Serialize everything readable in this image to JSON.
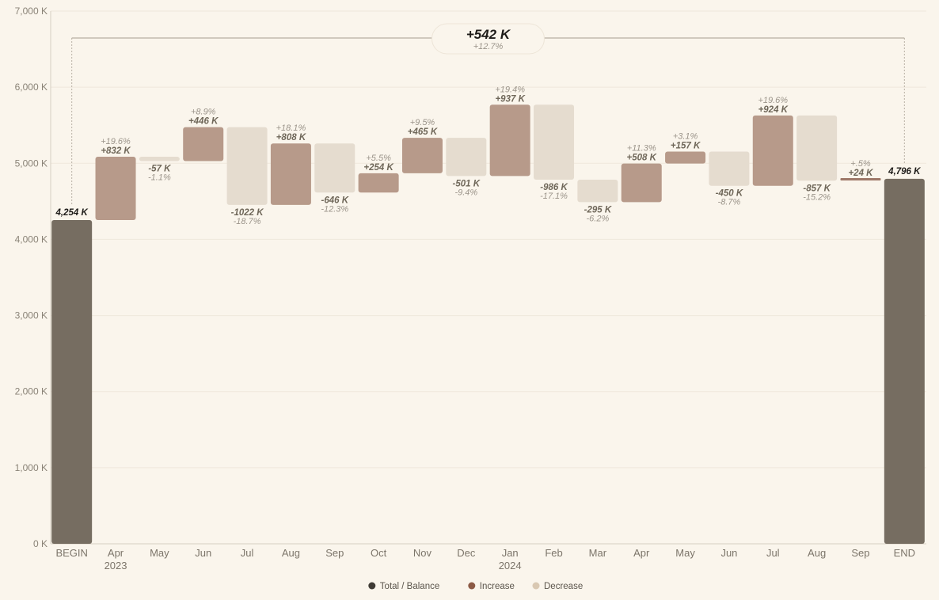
{
  "chart_data": {
    "type": "waterfall",
    "y_axis": {
      "min": 0,
      "max": 7000,
      "ticks": [
        {
          "value": 0,
          "label": "0 K"
        },
        {
          "value": 1000,
          "label": "1,000 K"
        },
        {
          "value": 2000,
          "label": "2,000 K"
        },
        {
          "value": 3000,
          "label": "3,000 K"
        },
        {
          "value": 4000,
          "label": "4,000 K"
        },
        {
          "value": 5000,
          "label": "5,000 K"
        },
        {
          "value": 6000,
          "label": "6,000 K"
        },
        {
          "value": 7000,
          "label": "7,000 K"
        }
      ],
      "grid": true
    },
    "begin": {
      "label": "BEGIN",
      "value": 4254,
      "value_label": "4,254 K"
    },
    "end": {
      "label": "END",
      "value": 4796,
      "value_label": "4,796 K"
    },
    "steps": [
      {
        "label": "Apr",
        "year": "2023",
        "change": 832,
        "value_label": "+832 K",
        "pct_label": "+19.6%"
      },
      {
        "label": "May",
        "year": "",
        "change": -57,
        "value_label": "-57 K",
        "pct_label": "-1.1%"
      },
      {
        "label": "Jun",
        "year": "",
        "change": 446,
        "value_label": "+446 K",
        "pct_label": "+8.9%"
      },
      {
        "label": "Jul",
        "year": "",
        "change": -1022,
        "value_label": "-1022 K",
        "pct_label": "-18.7%"
      },
      {
        "label": "Aug",
        "year": "",
        "change": 808,
        "value_label": "+808 K",
        "pct_label": "+18.1%"
      },
      {
        "label": "Sep",
        "year": "",
        "change": -646,
        "value_label": "-646 K",
        "pct_label": "-12.3%"
      },
      {
        "label": "Oct",
        "year": "",
        "change": 254,
        "value_label": "+254 K",
        "pct_label": "+5.5%"
      },
      {
        "label": "Nov",
        "year": "",
        "change": 465,
        "value_label": "+465 K",
        "pct_label": "+9.5%"
      },
      {
        "label": "Dec",
        "year": "",
        "change": -501,
        "value_label": "-501 K",
        "pct_label": "-9.4%"
      },
      {
        "label": "Jan",
        "year": "2024",
        "change": 937,
        "value_label": "+937 K",
        "pct_label": "+19.4%"
      },
      {
        "label": "Feb",
        "year": "",
        "change": -986,
        "value_label": "-986 K",
        "pct_label": "-17.1%"
      },
      {
        "label": "Mar",
        "year": "",
        "change": -295,
        "value_label": "-295 K",
        "pct_label": "-6.2%"
      },
      {
        "label": "Apr",
        "year": "",
        "change": 508,
        "value_label": "+508 K",
        "pct_label": "+11.3%"
      },
      {
        "label": "May",
        "year": "",
        "change": 157,
        "value_label": "+157 K",
        "pct_label": "+3.1%"
      },
      {
        "label": "Jun",
        "year": "",
        "change": -450,
        "value_label": "-450 K",
        "pct_label": "-8.7%"
      },
      {
        "label": "Jul",
        "year": "",
        "change": 924,
        "value_label": "+924 K",
        "pct_label": "+19.6%"
      },
      {
        "label": "Aug",
        "year": "",
        "change": -857,
        "value_label": "-857 K",
        "pct_label": "-15.2%"
      },
      {
        "label": "Sep",
        "year": "",
        "change": 24,
        "value_label": "+24 K",
        "pct_label": "+.5%"
      }
    ],
    "total_change": {
      "value_label": "+542 K",
      "pct_label": "+12.7%"
    },
    "legend": {
      "position": "bottom-center",
      "items": [
        {
          "label": "Total / Balance",
          "color": "#3f3b35"
        },
        {
          "label": "Increase",
          "color": "#8c5a45"
        },
        {
          "label": "Decrease",
          "color": "#d9c8b2"
        }
      ]
    },
    "colors": {
      "total": "#766d61",
      "increase": "#b79a8a",
      "decrease": "#e5dccf",
      "increase_line": "#9e7868",
      "decrease_line": "#ddcfbc",
      "background": "#faf5ec"
    }
  }
}
